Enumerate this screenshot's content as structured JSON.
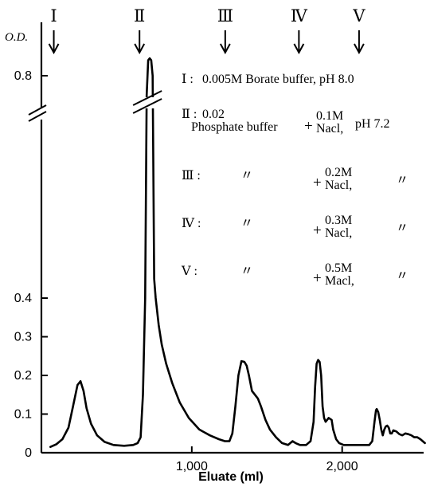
{
  "chart_data": {
    "type": "line",
    "title": "",
    "xlabel": "Eluate (ml)",
    "ylabel": "O.D.",
    "xlim": [
      0,
      2600
    ],
    "ylim": [
      0,
      0.85
    ],
    "axis_break": "between 0.4 and 0.8 on the O.D. axis (0.45–0.75 collapsed)",
    "x_ticks": [
      {
        "value": 1000,
        "label": "1,000"
      },
      {
        "value": 2000,
        "label": "2,000"
      }
    ],
    "y_ticks": [
      {
        "value": 0,
        "label": "0"
      },
      {
        "value": 0.1,
        "label": "0.1"
      },
      {
        "value": 0.2,
        "label": "0.2"
      },
      {
        "value": 0.3,
        "label": "0.3"
      },
      {
        "value": 0.4,
        "label": "0.4"
      },
      {
        "value": 0.8,
        "label": "0.8"
      }
    ],
    "series": [
      {
        "x": [
          60,
          100,
          140,
          180,
          210,
          240,
          260,
          280,
          300,
          330,
          370,
          420,
          480,
          550,
          610,
          640,
          660,
          675,
          690,
          700,
          710,
          720,
          730,
          740,
          750,
          760,
          780,
          800,
          830,
          870,
          920,
          980,
          1050,
          1120,
          1180,
          1220,
          1250,
          1270,
          1290,
          1310,
          1330,
          1350,
          1365,
          1380,
          1400,
          1420,
          1440,
          1460,
          1490,
          1520,
          1560,
          1600,
          1640,
          1670,
          1690,
          1720,
          1760,
          1790,
          1810,
          1820,
          1830,
          1840,
          1850,
          1860,
          1870,
          1880,
          1890,
          1910,
          1930,
          1940,
          1960,
          1980,
          2010,
          2060,
          2110,
          2150,
          2180,
          2200,
          2215,
          2225,
          2230,
          2240,
          2250,
          2260,
          2270,
          2280,
          2290,
          2300,
          2310,
          2320,
          2330,
          2340,
          2360,
          2380,
          2400,
          2420,
          2440,
          2460,
          2480,
          2500,
          2520,
          2550
        ],
        "y": [
          0.015,
          0.022,
          0.035,
          0.065,
          0.12,
          0.175,
          0.185,
          0.16,
          0.115,
          0.075,
          0.045,
          0.028,
          0.02,
          0.018,
          0.02,
          0.025,
          0.04,
          0.15,
          0.4,
          0.75,
          0.84,
          0.845,
          0.84,
          0.8,
          0.45,
          0.4,
          0.33,
          0.28,
          0.23,
          0.18,
          0.13,
          0.09,
          0.06,
          0.045,
          0.035,
          0.03,
          0.03,
          0.05,
          0.12,
          0.2,
          0.237,
          0.235,
          0.225,
          0.2,
          0.16,
          0.15,
          0.14,
          0.12,
          0.085,
          0.06,
          0.04,
          0.025,
          0.02,
          0.03,
          0.025,
          0.02,
          0.02,
          0.03,
          0.08,
          0.17,
          0.23,
          0.24,
          0.235,
          0.2,
          0.12,
          0.09,
          0.08,
          0.09,
          0.085,
          0.06,
          0.035,
          0.025,
          0.02,
          0.02,
          0.02,
          0.02,
          0.02,
          0.03,
          0.08,
          0.11,
          0.113,
          0.105,
          0.085,
          0.06,
          0.045,
          0.06,
          0.068,
          0.07,
          0.065,
          0.05,
          0.05,
          0.058,
          0.055,
          0.048,
          0.045,
          0.05,
          0.048,
          0.045,
          0.04,
          0.04,
          0.035,
          0.025
        ]
      }
    ],
    "arrows": [
      {
        "label": "Ⅰ",
        "x": 40
      },
      {
        "label": "Ⅱ",
        "x": 610
      },
      {
        "label": "Ⅲ",
        "x": 1180
      },
      {
        "label": "Ⅳ",
        "x": 1670
      },
      {
        "label": "Ⅴ",
        "x": 2070
      }
    ],
    "legend": [
      {
        "num": "Ⅰ :",
        "text": "0.005M Borate buffer, pH 8.0"
      },
      {
        "num": "Ⅱ :",
        "l1": "0.02",
        "l2": "Phosphate buffer",
        "plus": "+",
        "conc": "0.1M",
        "salt": "Nacl,",
        "ph": "pH 7.2"
      },
      {
        "num": "Ⅲ :",
        "ditto1": "〃",
        "plus": "+",
        "conc": "0.2M",
        "salt": "Nacl,",
        "ditto2": "〃"
      },
      {
        "num": "Ⅳ :",
        "ditto1": "〃",
        "plus": "+",
        "conc": "0.3M",
        "salt": "Nacl,",
        "ditto2": "〃"
      },
      {
        "num": "Ⅴ :",
        "ditto1": "〃",
        "plus": "+",
        "conc": "0.5M",
        "salt": "Macl,",
        "ditto2": "〃"
      }
    ]
  }
}
